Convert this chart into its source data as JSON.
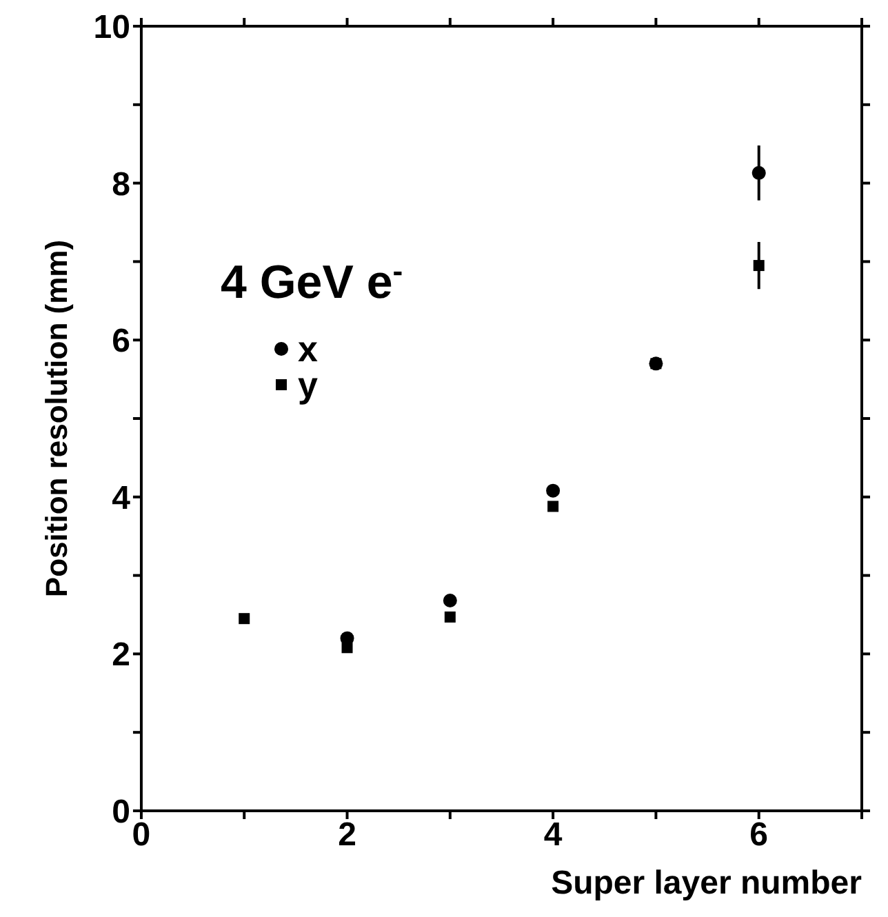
{
  "chart_data": {
    "type": "scatter",
    "xlabel": "Super layer number",
    "ylabel": "Position resolution (mm)",
    "annotations": [
      "4 GeV e$^{-}$"
    ],
    "x": [
      1,
      2,
      3,
      4,
      5,
      6
    ],
    "series": [
      {
        "name": "x",
        "color": "#000000",
        "marker": "circle",
        "values": [
          null,
          2.2,
          2.68,
          4.08,
          5.7,
          8.13
        ],
        "errors": [
          null,
          null,
          null,
          null,
          null,
          0.35
        ]
      },
      {
        "name": "y",
        "color": "#000000",
        "marker": "square",
        "values": [
          2.45,
          2.08,
          2.47,
          3.88,
          5.7,
          6.95
        ],
        "errors": [
          null,
          null,
          null,
          null,
          null,
          0.3
        ]
      }
    ],
    "xlim": [
      0,
      7
    ],
    "xticks": [
      0,
      {
        "value": 1,
        "label": null
      },
      2,
      {
        "value": 3,
        "label": null
      },
      4,
      {
        "value": 5,
        "label": null
      },
      6,
      {
        "value": 7,
        "label": null
      }
    ],
    "ylim": [
      0,
      10
    ],
    "yticks": [
      0,
      {
        "value": 1,
        "label": null
      },
      2,
      {
        "value": 3,
        "label": null
      },
      4,
      {
        "value": 5,
        "label": null
      },
      6,
      {
        "value": 7,
        "label": null
      },
      8,
      {
        "value": 9,
        "label": null
      },
      10
    ],
    "legend": "top left",
    "grid": false
  }
}
